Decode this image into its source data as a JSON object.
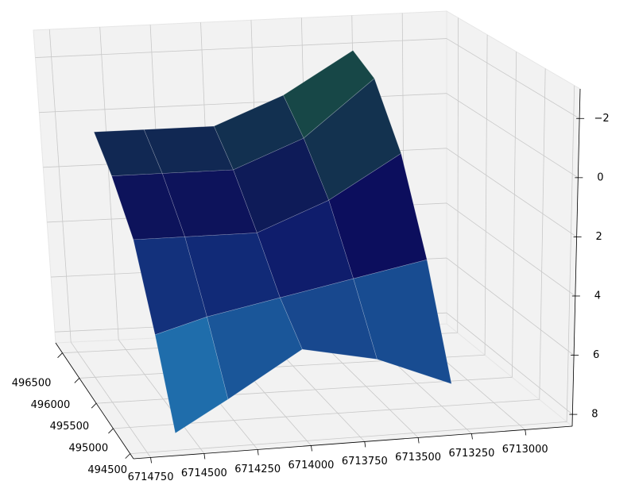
{
  "chart_data": {
    "type": "surface",
    "x": [
      494600,
      495100,
      495600,
      496100,
      496500
    ],
    "y": [
      6713300,
      6713650,
      6714000,
      6714350,
      6714600
    ],
    "z": [
      [
        7.0,
        3.5,
        0.5,
        -1.5,
        -2.0
      ],
      [
        6.0,
        4.0,
        2.0,
        0.5,
        -0.5
      ],
      [
        5.5,
        4.5,
        3.0,
        1.5,
        0.5
      ],
      [
        7.0,
        5.0,
        3.0,
        1.5,
        0.5
      ],
      [
        8.0,
        5.5,
        3.0,
        1.5,
        0.5
      ]
    ],
    "colormap": [
      "#1e6b3a",
      "#0b0b5e",
      "#2aa3d6"
    ],
    "xlim": [
      494400,
      496700
    ],
    "xticks": [
      494500,
      495000,
      495500,
      496000,
      496500
    ],
    "ylim": [
      6712780,
      6714830
    ],
    "yticks": [
      6713000,
      6713250,
      6713500,
      6713750,
      6714000,
      6714250,
      6714500,
      6714750
    ],
    "zlim": [
      -3,
      8.4
    ],
    "zticks": [
      {
        "value": -2,
        "label": "−2"
      },
      0,
      2,
      4,
      6,
      8
    ],
    "z_inverted": true,
    "grid": true
  }
}
